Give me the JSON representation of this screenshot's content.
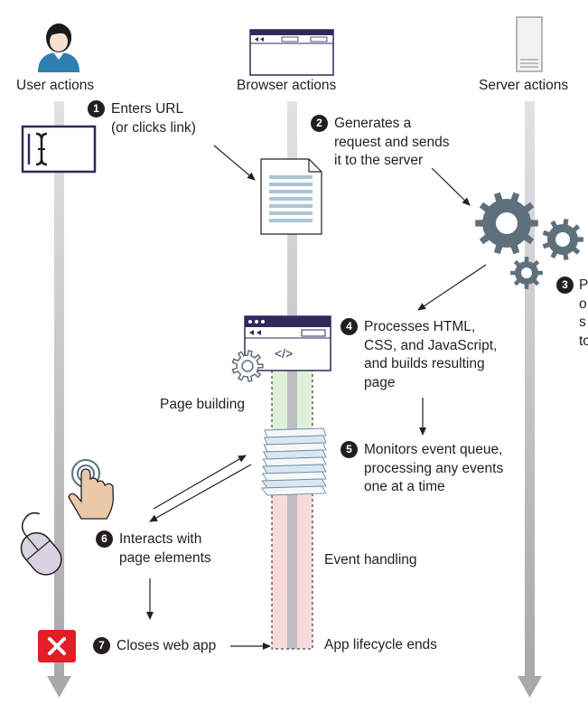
{
  "columns": {
    "user": "User actions",
    "browser": "Browser actions",
    "server": "Server actions"
  },
  "steps": [
    {
      "num": "1",
      "lines": [
        "Enters URL",
        "(or clicks link)"
      ]
    },
    {
      "num": "2",
      "lines": [
        "Generates a",
        "request and sends",
        "it to the server"
      ]
    },
    {
      "num": "3",
      "lines": [
        "P",
        "o",
        "s",
        "to"
      ]
    },
    {
      "num": "4",
      "lines": [
        "Processes HTML,",
        "CSS, and JavaScript,",
        "and builds resulting",
        "page"
      ]
    },
    {
      "num": "5",
      "lines": [
        "Monitors event queue,",
        "processing any events",
        "one at a time"
      ]
    },
    {
      "num": "6",
      "lines": [
        "Interacts with",
        "page elements"
      ]
    },
    {
      "num": "7",
      "lines": [
        "Closes web app"
      ]
    }
  ],
  "phases": {
    "page_building": "Page building",
    "event_handling": "Event handling",
    "lifecycle_end": "App lifecycle ends"
  },
  "colors": {
    "track": "#cfcfd1",
    "navy": "#2e2a5c",
    "gear": "#5e707c",
    "doc_lines": "#a9c5d8",
    "green_zone": "#dff0d9",
    "pink_zone": "#f9dada",
    "close_red": "#e31d25",
    "skin": "#e9c9a8",
    "mouse": "#d9d2e3"
  },
  "icons": [
    "user-icon",
    "browser-window-icon",
    "server-icon",
    "text-cursor-icon",
    "document-icon",
    "gears-icon",
    "code-window-icon",
    "event-queue-icon",
    "tap-hand-icon",
    "mouse-icon",
    "close-icon"
  ]
}
